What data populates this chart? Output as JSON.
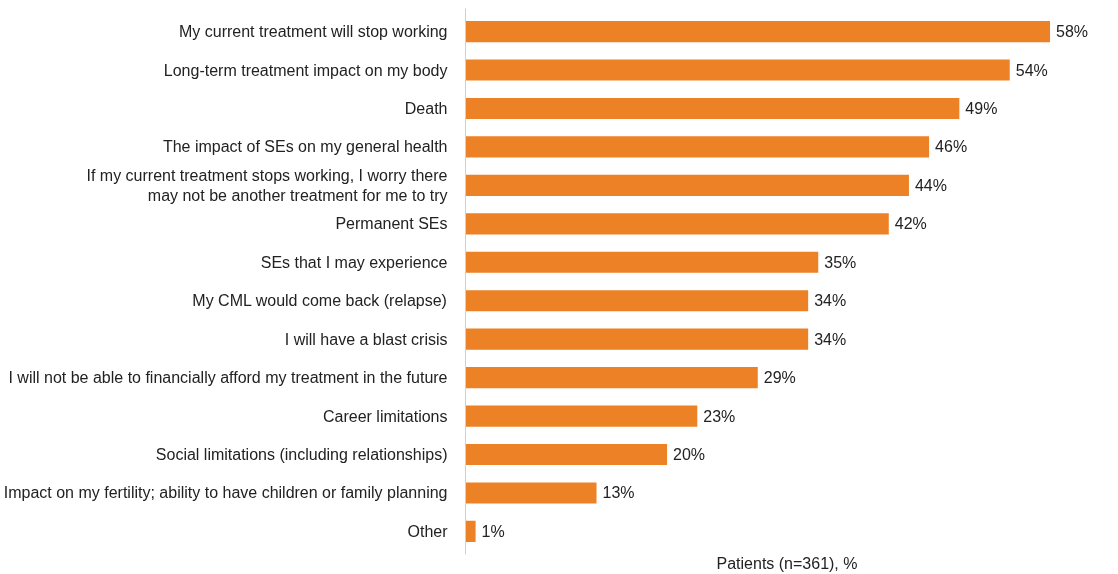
{
  "chart_data": {
    "type": "bar",
    "orientation": "horizontal",
    "xlabel": "Patients (n=361), %",
    "categories": [
      "My current treatment will stop working",
      "Long-term treatment impact on my body",
      "Death",
      "The impact of SEs on my general health",
      "If my current treatment stops working, I worry there\nmay not be another treatment for me to try",
      "Permanent SEs",
      "SEs that I may experience",
      "My CML would come back (relapse)",
      "I will have a blast crisis",
      "I will not be able to financially afford my treatment in the future",
      "Career limitations",
      "Social limitations (including relationships)",
      "Impact on my fertility; ability to have children or family planning",
      "Other"
    ],
    "values": [
      58,
      54,
      49,
      46,
      44,
      42,
      35,
      34,
      34,
      29,
      23,
      20,
      13,
      1
    ],
    "value_labels": [
      "58%",
      "54%",
      "49%",
      "46%",
      "44%",
      "42%",
      "35%",
      "34%",
      "34%",
      "29%",
      "23%",
      "20%",
      "13%",
      "1%"
    ],
    "color": "#ed8125",
    "tick_labels": "y",
    "grid": false
  }
}
